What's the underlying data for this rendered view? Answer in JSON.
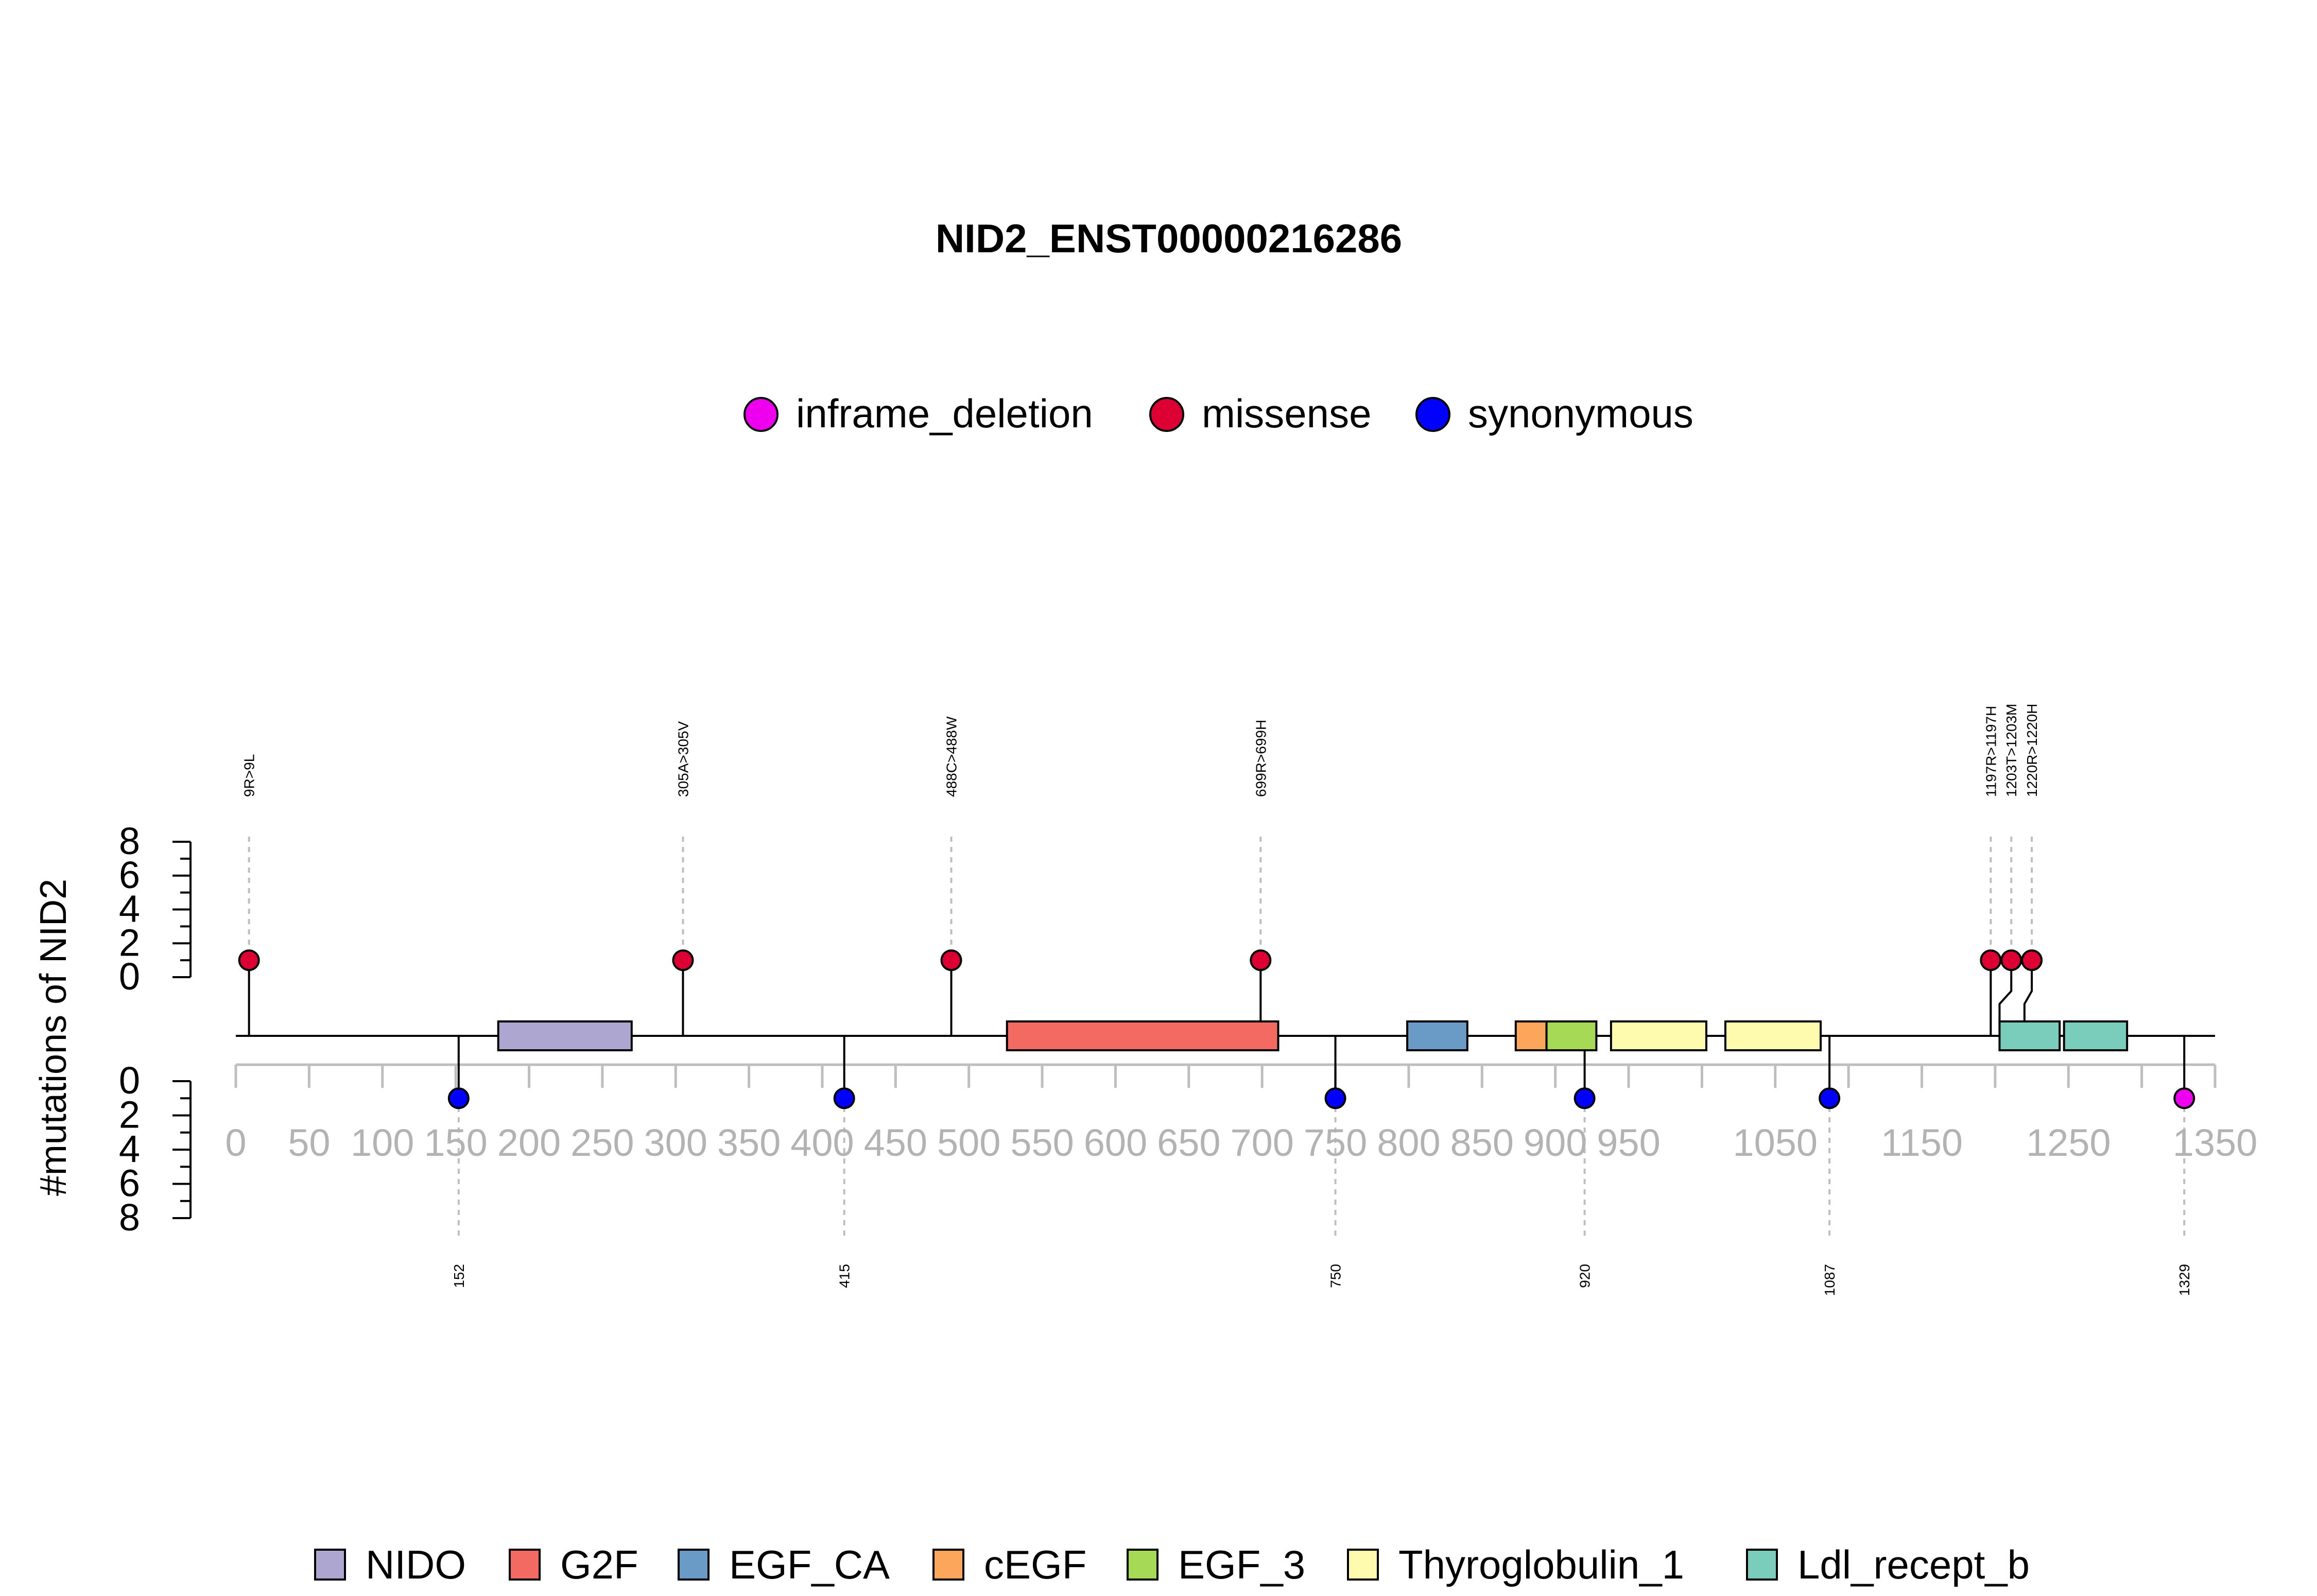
{
  "chart_data": {
    "type": "lollipop",
    "title": "NID2_ENST00000216286",
    "ylabel": "#mutations of NID2",
    "protein_length": 1375,
    "x_ticks": [
      "0",
      "50",
      "100",
      "150",
      "200",
      "250",
      "300",
      "350",
      "400",
      "450",
      "500",
      "550",
      "600",
      "650",
      "700",
      "750",
      "800",
      "850",
      "900",
      "950",
      "1050",
      "1150",
      "1250",
      "1350"
    ],
    "x_tick_values": [
      0,
      50,
      100,
      150,
      200,
      250,
      300,
      350,
      400,
      450,
      500,
      550,
      600,
      650,
      700,
      750,
      800,
      850,
      900,
      950,
      1050,
      1150,
      1250,
      1350
    ],
    "minor_ticks": [
      0,
      50,
      100,
      150,
      200,
      250,
      300,
      350,
      400,
      450,
      500,
      550,
      600,
      650,
      700,
      750,
      800,
      850,
      900,
      950,
      1000,
      1050,
      1100,
      1150,
      1200,
      1250,
      1300,
      1350
    ],
    "y_ticks": [
      "0",
      "2",
      "4",
      "6",
      "8"
    ],
    "y_tick_values": [
      0,
      2,
      4,
      6,
      8
    ],
    "ylim": [
      0,
      8
    ],
    "mutation_legend": [
      {
        "name": "inframe_deletion",
        "color": "#EE00EE"
      },
      {
        "name": "missense",
        "color": "#DC0033"
      },
      {
        "name": "synonymous",
        "color": "#0000FF"
      }
    ],
    "top_mutations": [
      {
        "position": 9,
        "count": 1,
        "type": "missense",
        "label": "9R>9L",
        "label_pos": 9
      },
      {
        "position": 305,
        "count": 1,
        "type": "missense",
        "label": "305A>305V",
        "label_pos": 305
      },
      {
        "position": 488,
        "count": 1,
        "type": "missense",
        "label": "488C>488W",
        "label_pos": 488
      },
      {
        "position": 699,
        "count": 1,
        "type": "missense",
        "label": "699R>699H",
        "label_pos": 699
      },
      {
        "position": 1197,
        "count": 1,
        "type": "missense",
        "label": "1197R>1197H",
        "label_pos": 1197,
        "bent": true
      },
      {
        "position": 1203,
        "count": 1,
        "type": "missense",
        "label": "1203T>1203M",
        "label_pos": 1211,
        "bent": true
      },
      {
        "position": 1220,
        "count": 1,
        "type": "missense",
        "label": "1220R>1220H",
        "label_pos": 1225,
        "bent": true
      }
    ],
    "bottom_mutations": [
      {
        "position": 152,
        "count": 1,
        "type": "synonymous",
        "label": "152"
      },
      {
        "position": 415,
        "count": 1,
        "type": "synonymous",
        "label": "415"
      },
      {
        "position": 750,
        "count": 1,
        "type": "synonymous",
        "label": "750"
      },
      {
        "position": 920,
        "count": 1,
        "type": "synonymous",
        "label": "920"
      },
      {
        "position": 1087,
        "count": 1,
        "type": "synonymous",
        "label": "1087"
      },
      {
        "position": 1329,
        "count": 1,
        "type": "inframe_deletion",
        "label": "1329"
      }
    ],
    "domains": [
      {
        "name": "NIDO",
        "start": 179,
        "end": 270,
        "color": "#ACA6D0"
      },
      {
        "name": "G2F",
        "start": 526,
        "end": 711,
        "color": "#F26A62"
      },
      {
        "name": "EGF_CA",
        "start": 799,
        "end": 840,
        "color": "#6A9BC6"
      },
      {
        "name": "cEGF",
        "start": 873,
        "end": 894,
        "color": "#FBA65A"
      },
      {
        "name": "EGF_3",
        "start": 894,
        "end": 928,
        "color": "#A6D955"
      },
      {
        "name": "Thyroglobulin_1",
        "start": 938,
        "end": 1003,
        "color": "#FFFBAE"
      },
      {
        "name": "Thyroglobulin_1",
        "start": 1016,
        "end": 1081,
        "color": "#FFFBAE"
      },
      {
        "name": "Ldl_recept_b",
        "start": 1203,
        "end": 1244,
        "color": "#79CDBA"
      },
      {
        "name": "Ldl_recept_b",
        "start": 1247,
        "end": 1290,
        "color": "#79CDBA"
      }
    ],
    "domain_legend": [
      {
        "name": "NIDO",
        "color": "#ACA6D0"
      },
      {
        "name": "G2F",
        "color": "#F26A62"
      },
      {
        "name": "EGF_CA",
        "color": "#6A9BC6"
      },
      {
        "name": "cEGF",
        "color": "#FBA65A"
      },
      {
        "name": "EGF_3",
        "color": "#A6D955"
      },
      {
        "name": "Thyroglobulin_1",
        "color": "#FFFBAE"
      },
      {
        "name": "Ldl_recept_b",
        "color": "#79CDBA"
      }
    ]
  }
}
